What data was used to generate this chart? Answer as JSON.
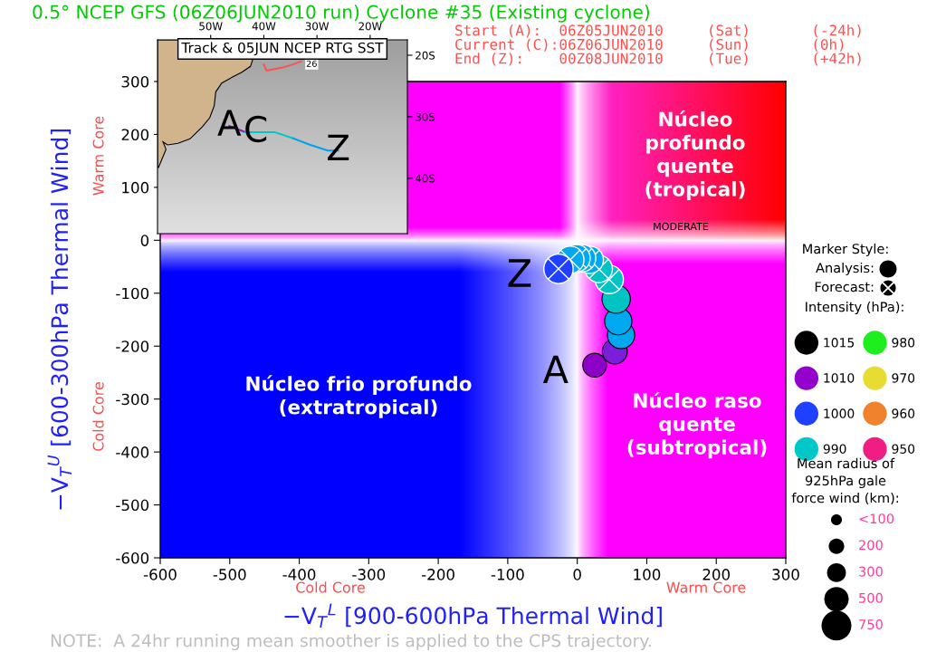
{
  "chart_data": [
    {
      "type": "bubble",
      "title": "0.5° NCEP GFS (06Z06JUN2010 run) Cyclone #35 (Existing cyclone)",
      "subtitle": "Start (A):  06Z05JUN2010     (Sat)       (-24h)\nCurrent (C):06Z06JUN2010     (Sun)       (0h)\nEnd (Z):    00Z08JUN2010     (Tue)       (+42h)",
      "xlabel": "−V$_{T}$$^{L}$ [900-600hPa Thermal Wind]",
      "ylabel": "−V$_{T}$$^{U}$ [600-300hPa Thermal Wind]",
      "legend_title": "Intensity (hPa):",
      "legend": "right",
      "xlim": [
        -600,
        300
      ],
      "ylim": [
        -600,
        300
      ],
      "xticks": [
        -600,
        -500,
        -400,
        -300,
        -200,
        -100,
        0,
        100,
        200,
        300
      ],
      "yticks": [
        -600,
        -500,
        -400,
        -300,
        -200,
        -100,
        0,
        100,
        200,
        300
      ],
      "size_legend": [
        {
          "value": 100,
          "label": "<100"
        },
        200,
        300,
        500,
        750
      ],
      "series": [
        {
          "marker": "circle",
          "x": [
            25,
            54,
            63,
            59,
            56
          ],
          "values": [
            -236,
            -210,
            -179,
            -153,
            -111
          ],
          "sizes": [
            475,
            525,
            625,
            625,
            675
          ],
          "colors": [
            "#8c00c8",
            "#7a1ed8",
            "#00a8f0",
            "#00a8f0",
            "#00c4c4"
          ]
        },
        {
          "marker": "cross",
          "x": [
            46,
            31,
            18,
            7,
            -1,
            -10,
            -27
          ],
          "values": [
            -74,
            -54,
            -37,
            -34,
            -34,
            -37,
            -54
          ],
          "sizes": [
            675,
            625,
            625,
            625,
            625,
            625,
            725
          ],
          "colors": [
            "#00c4c4",
            "#00c4c4",
            "#00a8f0",
            "#00a8f0",
            "#00a8f0",
            "#00a8f0",
            "#2040ff"
          ]
        },
        {
          "name": "1015",
          "color": "#000000"
        },
        {
          "name": "1010",
          "color": "#9400cc"
        },
        {
          "name": "1000",
          "color": "#2040ff"
        },
        {
          "name": "990",
          "color": "#00c8c8"
        },
        {
          "name": "980",
          "color": "#1eee1e"
        },
        {
          "name": "970",
          "color": "#e6dc32"
        },
        {
          "name": "960",
          "color": "#f0822d"
        },
        {
          "name": "950",
          "color": "#f01e82"
        }
      ],
      "annotations": [
        "Núcleo\nprofundo\nquente\n(tropical)",
        "Núcleo frio profundo\n(extratropical)",
        "Núcleo raso\nquente\n(subtropical)",
        "MODERATE",
        "Warm Core",
        "Cold Core",
        "Warm Core",
        "Cold Core",
        "Marker Style:",
        "Analysis:",
        "Forecast:",
        "Mean radius of\n925hPa gale\nforce wind (km):",
        "NOTE:  A 24hr running mean smoother is applied to the CPS trajectory.",
        {
          "text": "A",
          "x": 25,
          "y": -236
        },
        {
          "text": "Z",
          "x": -27,
          "y": -54
        }
      ]
    },
    {
      "type": "line",
      "title": "Track & 05JUN NCEP RTG SST",
      "xlim": [
        -60,
        -13
      ],
      "ylim": [
        -49,
        -17.5
      ],
      "xticks": [
        {
          "value": -50,
          "label": "50W"
        },
        {
          "value": -40,
          "label": "40W"
        },
        {
          "value": -30,
          "label": "30W"
        },
        {
          "value": -20,
          "label": "20W"
        }
      ],
      "yticks": [
        {
          "value": -40,
          "label": "40S"
        },
        {
          "value": -30,
          "label": "30S"
        },
        {
          "value": -20,
          "label": "20S"
        }
      ],
      "series": [
        {
          "color": "#8c1ec8",
          "x": [
            -46.5,
            -43.5
          ],
          "values": [
            -31.5,
            -32.5
          ]
        },
        {
          "color": "#00c8c8",
          "x": [
            -43.5,
            -41.5,
            -38,
            -34.5
          ],
          "values": [
            -32.5,
            -32.5,
            -32.5,
            -33.5
          ]
        },
        {
          "color": "#00a0f0",
          "x": [
            -34.5,
            -31.5,
            -28,
            -26
          ],
          "values": [
            -33.5,
            -34.5,
            -35.5,
            -35.5
          ]
        },
        {
          "color": "#ff5050",
          "x": [
            -40,
            -39.5,
            -36.5,
            -34.5,
            -33
          ],
          "values": [
            -21.5,
            -22.5,
            -22,
            -21.5,
            -21
          ]
        }
      ],
      "annotations": [
        {
          "text": "A",
          "x": -46.5,
          "y": -31.5
        },
        {
          "text": "C",
          "x": -41.5,
          "y": -32.5
        },
        {
          "text": "Z",
          "x": -26,
          "y": -35.5
        },
        {
          "text": "26",
          "x": -31,
          "y": -21.5
        }
      ]
    }
  ]
}
